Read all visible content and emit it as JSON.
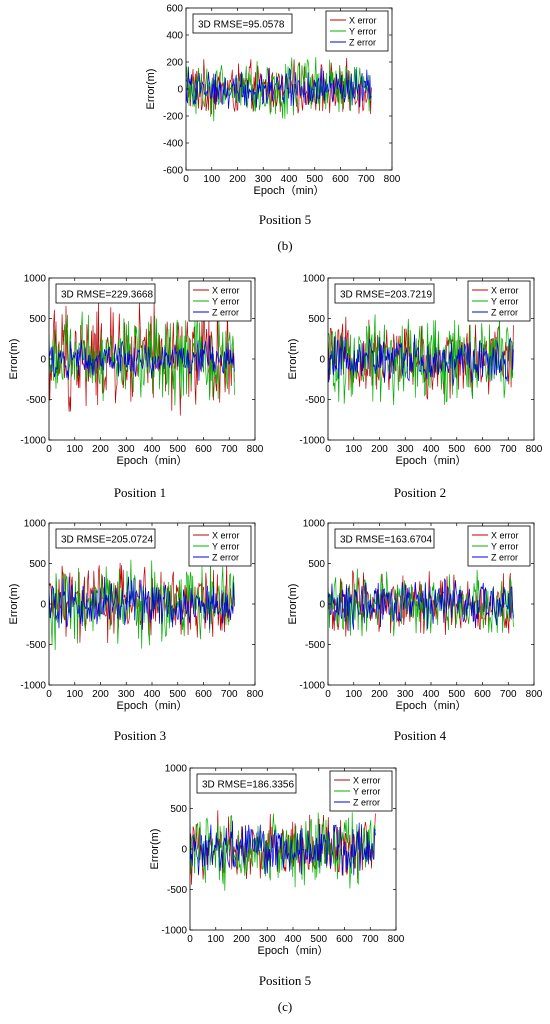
{
  "figure": {
    "label_b": "(b)",
    "label_c": "(c)"
  },
  "chart_data": [
    {
      "type": "line",
      "panel": "b",
      "caption": "Position 5",
      "annotation": "3D RMSE=95.0578",
      "xlabel": "Epoch（min）",
      "ylabel": "Error(m)",
      "xlim": [
        0,
        800
      ],
      "ylim": [
        -600,
        600
      ],
      "xticks": [
        0,
        100,
        200,
        300,
        400,
        500,
        600,
        700,
        800
      ],
      "yticks": [
        -600,
        -400,
        -200,
        0,
        200,
        400,
        600
      ],
      "legend_position": "top-right",
      "grid": false,
      "epoch_range": [
        0,
        720
      ],
      "series": [
        {
          "name": "X error",
          "color": "#c00000",
          "amplitude": 230
        },
        {
          "name": "Y error",
          "color": "#00b000",
          "amplitude": 260
        },
        {
          "name": "Z error",
          "color": "#0000dd",
          "amplitude": 180
        }
      ]
    },
    {
      "type": "line",
      "panel": "c",
      "caption": "Position 1",
      "annotation": "3D RMSE=229.3668",
      "xlabel": "Epoch（min）",
      "ylabel": "Error(m)",
      "xlim": [
        0,
        800
      ],
      "ylim": [
        -1000,
        1000
      ],
      "xticks": [
        0,
        100,
        200,
        300,
        400,
        500,
        600,
        700,
        800
      ],
      "yticks": [
        -1000,
        -500,
        0,
        500,
        1000
      ],
      "legend_position": "top-right",
      "grid": false,
      "epoch_range": [
        0,
        720
      ],
      "series": [
        {
          "name": "X error",
          "color": "#c00000",
          "amplitude": 800
        },
        {
          "name": "Y error",
          "color": "#00b000",
          "amplitude": 650
        },
        {
          "name": "Z error",
          "color": "#0000dd",
          "amplitude": 300
        }
      ]
    },
    {
      "type": "line",
      "panel": "c",
      "caption": "Position 2",
      "annotation": "3D RMSE=203.7219",
      "xlabel": "Epoch（min）",
      "ylabel": "Error(m)",
      "xlim": [
        0,
        800
      ],
      "ylim": [
        -1000,
        1000
      ],
      "xticks": [
        0,
        100,
        200,
        300,
        400,
        500,
        600,
        700,
        800
      ],
      "yticks": [
        -1000,
        -500,
        0,
        500,
        1000
      ],
      "legend_position": "top-right",
      "grid": false,
      "epoch_range": [
        0,
        720
      ],
      "series": [
        {
          "name": "X error",
          "color": "#c00000",
          "amplitude": 550
        },
        {
          "name": "Y error",
          "color": "#00b000",
          "amplitude": 650
        },
        {
          "name": "Z error",
          "color": "#0000dd",
          "amplitude": 350
        }
      ]
    },
    {
      "type": "line",
      "panel": "c",
      "caption": "Position 3",
      "annotation": "3D RMSE=205.0724",
      "xlabel": "Epoch（min）",
      "ylabel": "Error(m)",
      "xlim": [
        0,
        800
      ],
      "ylim": [
        -1000,
        1000
      ],
      "xticks": [
        0,
        100,
        200,
        300,
        400,
        500,
        600,
        700,
        800
      ],
      "yticks": [
        -1000,
        -500,
        0,
        500,
        1000
      ],
      "legend_position": "top-right",
      "grid": false,
      "epoch_range": [
        0,
        720
      ],
      "series": [
        {
          "name": "X error",
          "color": "#c00000",
          "amplitude": 550
        },
        {
          "name": "Y error",
          "color": "#00b000",
          "amplitude": 600
        },
        {
          "name": "Z error",
          "color": "#0000dd",
          "amplitude": 400
        }
      ]
    },
    {
      "type": "line",
      "panel": "c",
      "caption": "Position 4",
      "annotation": "3D RMSE=163.6704",
      "xlabel": "Epoch（min）",
      "ylabel": "Error(m)",
      "xlim": [
        0,
        800
      ],
      "ylim": [
        -1000,
        1000
      ],
      "xticks": [
        0,
        100,
        200,
        300,
        400,
        500,
        600,
        700,
        800
      ],
      "yticks": [
        -1000,
        -500,
        0,
        500,
        1000
      ],
      "legend_position": "top-right",
      "grid": false,
      "epoch_range": [
        0,
        720
      ],
      "series": [
        {
          "name": "X error",
          "color": "#c00000",
          "amplitude": 450
        },
        {
          "name": "Y error",
          "color": "#00b000",
          "amplitude": 450
        },
        {
          "name": "Z error",
          "color": "#0000dd",
          "amplitude": 350
        }
      ]
    },
    {
      "type": "line",
      "panel": "c",
      "caption": "Position 5",
      "annotation": "3D RMSE=186.3356",
      "xlabel": "Epoch（min）",
      "ylabel": "Error(m)",
      "xlim": [
        0,
        800
      ],
      "ylim": [
        -1000,
        1000
      ],
      "xticks": [
        0,
        100,
        200,
        300,
        400,
        500,
        600,
        700,
        800
      ],
      "yticks": [
        -1000,
        -500,
        0,
        500,
        1000
      ],
      "legend_position": "top-right",
      "grid": false,
      "epoch_range": [
        0,
        720
      ],
      "series": [
        {
          "name": "X error",
          "color": "#c00000",
          "amplitude": 500
        },
        {
          "name": "Y error",
          "color": "#00b000",
          "amplitude": 550
        },
        {
          "name": "Z error",
          "color": "#0000dd",
          "amplitude": 400
        }
      ]
    }
  ]
}
